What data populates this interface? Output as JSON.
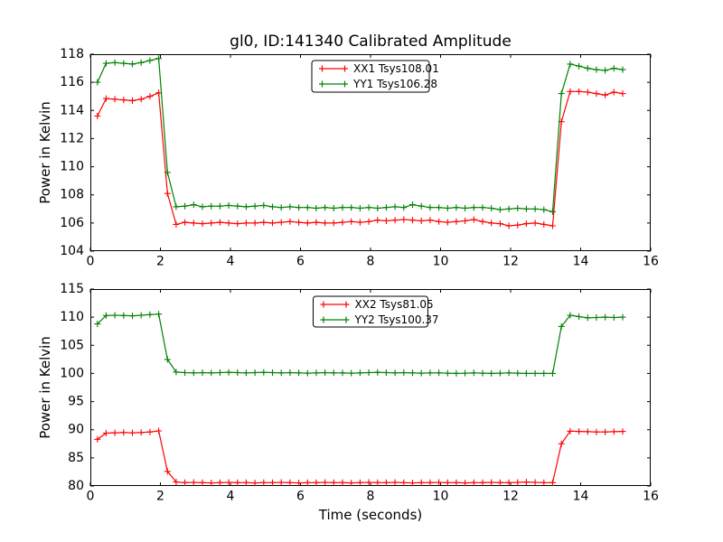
{
  "figure": {
    "background": "#ffffff",
    "frame_color": "#000000"
  },
  "chart_data": [
    {
      "type": "line",
      "title": "gl0, ID:141340 Calibrated Amplitude",
      "ylabel": "Power in Kelvin",
      "xlabel": "",
      "xlim": [
        0,
        16
      ],
      "ylim": [
        104,
        118
      ],
      "xticks": [
        0,
        2,
        4,
        6,
        8,
        10,
        12,
        14,
        16
      ],
      "yticks": [
        104,
        106,
        108,
        110,
        112,
        114,
        116,
        118
      ],
      "grid": false,
      "legend_position": "upper center",
      "x": [
        0.2,
        0.45,
        0.7,
        0.95,
        1.2,
        1.45,
        1.7,
        1.95,
        2.2,
        2.45,
        2.7,
        2.95,
        3.2,
        3.45,
        3.7,
        3.95,
        4.2,
        4.45,
        4.7,
        4.95,
        5.2,
        5.45,
        5.7,
        5.95,
        6.2,
        6.45,
        6.7,
        6.95,
        7.2,
        7.45,
        7.7,
        7.95,
        8.2,
        8.45,
        8.7,
        8.95,
        9.2,
        9.45,
        9.7,
        9.95,
        10.2,
        10.45,
        10.7,
        10.95,
        11.2,
        11.45,
        11.7,
        11.95,
        12.2,
        12.45,
        12.7,
        12.95,
        13.2,
        13.45,
        13.7,
        13.95,
        14.2,
        14.45,
        14.7,
        14.95,
        15.2
      ],
      "series": [
        {
          "name": "XX1 Tsys108.01",
          "color": "#ff0000",
          "marker": "plus",
          "values": [
            113.6,
            114.85,
            114.8,
            114.75,
            114.7,
            114.8,
            115.0,
            115.25,
            108.1,
            105.9,
            106.05,
            106.0,
            105.95,
            106.0,
            106.05,
            106.0,
            105.95,
            106.0,
            106.0,
            106.05,
            106.0,
            106.05,
            106.1,
            106.05,
            106.0,
            106.05,
            106.0,
            106.0,
            106.05,
            106.1,
            106.05,
            106.1,
            106.2,
            106.15,
            106.2,
            106.25,
            106.2,
            106.15,
            106.2,
            106.1,
            106.05,
            106.1,
            106.15,
            106.25,
            106.1,
            106.0,
            105.95,
            105.8,
            105.85,
            105.95,
            106.0,
            105.9,
            105.8,
            113.2,
            115.35,
            115.35,
            115.3,
            115.2,
            115.1,
            115.3,
            115.2
          ]
        },
        {
          "name": "YY1 Tsys106.28",
          "color": "#008000",
          "marker": "plus",
          "values": [
            116.0,
            117.35,
            117.4,
            117.35,
            117.3,
            117.4,
            117.55,
            117.7,
            109.6,
            107.15,
            107.2,
            107.3,
            107.15,
            107.2,
            107.2,
            107.25,
            107.2,
            107.15,
            107.2,
            107.25,
            107.15,
            107.1,
            107.15,
            107.1,
            107.1,
            107.05,
            107.1,
            107.05,
            107.1,
            107.1,
            107.05,
            107.1,
            107.05,
            107.1,
            107.15,
            107.1,
            107.3,
            107.2,
            107.1,
            107.1,
            107.05,
            107.1,
            107.05,
            107.1,
            107.1,
            107.05,
            106.95,
            107.0,
            107.05,
            107.0,
            107.0,
            106.95,
            106.8,
            115.2,
            117.3,
            117.15,
            117.0,
            116.9,
            116.85,
            117.0,
            116.9
          ]
        }
      ]
    },
    {
      "type": "line",
      "title": "",
      "ylabel": "Power in Kelvin",
      "xlabel": "Time (seconds)",
      "xlim": [
        0,
        16
      ],
      "ylim": [
        80,
        115
      ],
      "xticks": [
        0,
        2,
        4,
        6,
        8,
        10,
        12,
        14,
        16
      ],
      "yticks": [
        80,
        85,
        90,
        95,
        100,
        105,
        110,
        115
      ],
      "grid": false,
      "legend_position": "upper center",
      "x": [
        0.2,
        0.45,
        0.7,
        0.95,
        1.2,
        1.45,
        1.7,
        1.95,
        2.2,
        2.45,
        2.7,
        2.95,
        3.2,
        3.45,
        3.7,
        3.95,
        4.2,
        4.45,
        4.7,
        4.95,
        5.2,
        5.45,
        5.7,
        5.95,
        6.2,
        6.45,
        6.7,
        6.95,
        7.2,
        7.45,
        7.7,
        7.95,
        8.2,
        8.45,
        8.7,
        8.95,
        9.2,
        9.45,
        9.7,
        9.95,
        10.2,
        10.45,
        10.7,
        10.95,
        11.2,
        11.45,
        11.7,
        11.95,
        12.2,
        12.45,
        12.7,
        12.95,
        13.2,
        13.45,
        13.7,
        13.95,
        14.2,
        14.45,
        14.7,
        14.95,
        15.2
      ],
      "series": [
        {
          "name": "XX2 Tsys81.05",
          "color": "#ff0000",
          "marker": "plus",
          "values": [
            88.3,
            89.4,
            89.45,
            89.5,
            89.45,
            89.5,
            89.6,
            89.8,
            82.6,
            80.7,
            80.6,
            80.65,
            80.6,
            80.55,
            80.6,
            80.65,
            80.6,
            80.6,
            80.55,
            80.6,
            80.6,
            80.65,
            80.6,
            80.55,
            80.6,
            80.6,
            80.65,
            80.6,
            80.6,
            80.55,
            80.6,
            80.65,
            80.6,
            80.6,
            80.65,
            80.6,
            80.55,
            80.6,
            80.6,
            80.65,
            80.6,
            80.6,
            80.55,
            80.6,
            80.6,
            80.65,
            80.6,
            80.6,
            80.65,
            80.7,
            80.65,
            80.6,
            80.6,
            87.5,
            89.75,
            89.7,
            89.65,
            89.6,
            89.6,
            89.65,
            89.7
          ]
        },
        {
          "name": "YY2 Tsys100.37",
          "color": "#008000",
          "marker": "plus",
          "values": [
            108.8,
            110.3,
            110.35,
            110.3,
            110.25,
            110.35,
            110.45,
            110.55,
            102.5,
            100.25,
            100.15,
            100.1,
            100.15,
            100.1,
            100.15,
            100.2,
            100.15,
            100.1,
            100.15,
            100.2,
            100.15,
            100.1,
            100.15,
            100.1,
            100.05,
            100.1,
            100.15,
            100.1,
            100.1,
            100.05,
            100.1,
            100.15,
            100.2,
            100.15,
            100.1,
            100.15,
            100.1,
            100.05,
            100.1,
            100.1,
            100.05,
            100.0,
            100.05,
            100.1,
            100.05,
            100.0,
            100.05,
            100.1,
            100.05,
            100.0,
            100.0,
            100.0,
            100.0,
            108.35,
            110.35,
            110.1,
            109.9,
            109.95,
            110.0,
            109.95,
            110.0
          ]
        }
      ]
    }
  ]
}
